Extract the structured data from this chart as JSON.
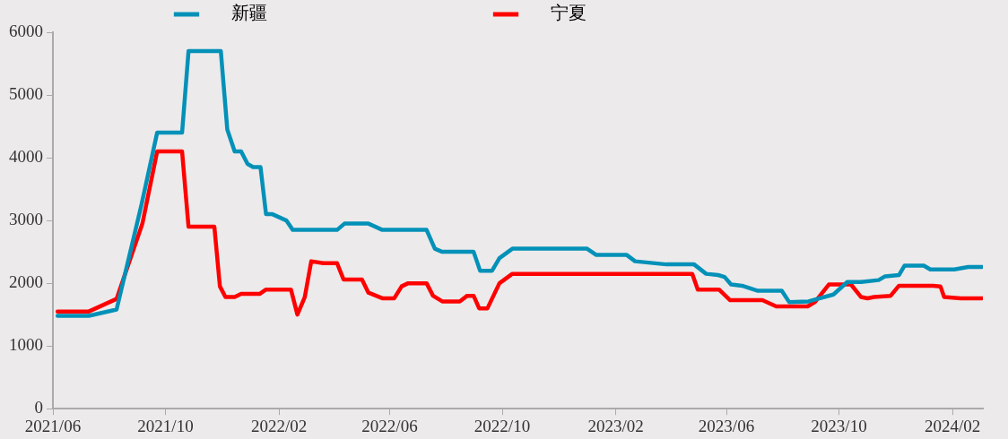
{
  "chart_data": {
    "type": "line",
    "legend": "top",
    "grid": false,
    "marker": "none",
    "line_style": "solid",
    "xlim": [
      "2021-06-01",
      "2024-03-05"
    ],
    "ylim": [
      0,
      6000
    ],
    "yticks": [
      0,
      1000,
      2000,
      3000,
      4000,
      5000,
      6000
    ],
    "xticks": [
      {
        "value": "2021-06",
        "label": "2021/06"
      },
      {
        "value": "2021-10",
        "label": "2021/10"
      },
      {
        "value": "2022-02",
        "label": "2022/02"
      },
      {
        "value": "2022-06",
        "label": "2022/06"
      },
      {
        "value": "2022-10",
        "label": "2022/10"
      },
      {
        "value": "2023-02",
        "label": "2023/02"
      },
      {
        "value": "2023-06",
        "label": "2023/06"
      },
      {
        "value": "2023-10",
        "label": "2023/10"
      },
      {
        "value": "2024-02",
        "label": "2024/02"
      }
    ],
    "series": [
      {
        "name": "新疆",
        "color": "#0391b8",
        "x": [
          "2021-06-06",
          "2021-07-10",
          "2021-08-09",
          "2021-09-05",
          "2021-09-22",
          "2021-10-19",
          "2021-10-26",
          "2021-11-30",
          "2021-12-07",
          "2021-12-15",
          "2021-12-22",
          "2021-12-29",
          "2022-01-04",
          "2022-01-12",
          "2022-01-18",
          "2022-01-25",
          "2022-02-09",
          "2022-02-16",
          "2022-04-05",
          "2022-04-13",
          "2022-05-09",
          "2022-05-24",
          "2022-07-11",
          "2022-07-20",
          "2022-07-28",
          "2022-08-31",
          "2022-09-07",
          "2022-09-20",
          "2022-09-28",
          "2022-10-12",
          "2023-01-01",
          "2023-01-11",
          "2023-02-13",
          "2023-02-22",
          "2023-03-28",
          "2023-04-27",
          "2023-05-10",
          "2023-05-23",
          "2023-05-30",
          "2023-06-06",
          "2023-06-18",
          "2023-07-05",
          "2023-07-31",
          "2023-08-08",
          "2023-08-29",
          "2023-09-25",
          "2023-10-10",
          "2023-10-25",
          "2023-11-13",
          "2023-11-20",
          "2023-12-05",
          "2023-12-11",
          "2024-01-01",
          "2024-01-08",
          "2024-02-03",
          "2024-02-18",
          "2024-03-04"
        ],
        "values": [
          1480,
          1480,
          1580,
          3250,
          4400,
          4400,
          5700,
          5700,
          4450,
          4100,
          4100,
          3900,
          3850,
          3850,
          3100,
          3100,
          3000,
          2850,
          2850,
          2950,
          2950,
          2850,
          2850,
          2550,
          2500,
          2500,
          2200,
          2200,
          2400,
          2550,
          2550,
          2450,
          2450,
          2350,
          2300,
          2300,
          2150,
          2130,
          2100,
          1980,
          1960,
          1880,
          1880,
          1700,
          1710,
          1820,
          2020,
          2020,
          2050,
          2110,
          2130,
          2280,
          2280,
          2220,
          2220,
          2260,
          2260
        ]
      },
      {
        "name": "宁夏",
        "color": "#ff0000",
        "x": [
          "2021-06-06",
          "2021-07-10",
          "2021-08-09",
          "2021-09-06",
          "2021-09-22",
          "2021-10-19",
          "2021-10-26",
          "2021-11-23",
          "2021-11-29",
          "2021-12-05",
          "2021-12-15",
          "2021-12-22",
          "2022-01-11",
          "2022-01-18",
          "2022-02-14",
          "2022-02-21",
          "2022-03-01",
          "2022-03-08",
          "2022-03-21",
          "2022-04-05",
          "2022-04-12",
          "2022-05-02",
          "2022-05-09",
          "2022-05-24",
          "2022-06-06",
          "2022-06-14",
          "2022-06-21",
          "2022-07-11",
          "2022-07-18",
          "2022-07-28",
          "2022-08-16",
          "2022-08-24",
          "2022-08-31",
          "2022-09-06",
          "2022-09-15",
          "2022-09-28",
          "2022-10-12",
          "2023-04-25",
          "2023-05-01",
          "2023-05-24",
          "2023-06-05",
          "2023-07-10",
          "2023-07-25",
          "2023-08-28",
          "2023-09-05",
          "2023-09-20",
          "2023-10-14",
          "2023-10-25",
          "2023-11-01",
          "2023-11-08",
          "2023-11-26",
          "2023-12-05",
          "2024-01-11",
          "2024-01-19",
          "2024-01-23",
          "2024-02-10",
          "2024-03-04"
        ],
        "values": [
          1550,
          1550,
          1750,
          2950,
          4100,
          4100,
          2900,
          2900,
          1950,
          1780,
          1780,
          1830,
          1830,
          1900,
          1900,
          1500,
          1780,
          2350,
          2320,
          2320,
          2060,
          2060,
          1850,
          1760,
          1760,
          1950,
          2000,
          2000,
          1800,
          1710,
          1710,
          1800,
          1800,
          1600,
          1600,
          2000,
          2150,
          2150,
          1900,
          1900,
          1730,
          1730,
          1630,
          1630,
          1700,
          1980,
          1980,
          1780,
          1760,
          1780,
          1800,
          1960,
          1960,
          1950,
          1780,
          1760,
          1760
        ]
      }
    ]
  }
}
